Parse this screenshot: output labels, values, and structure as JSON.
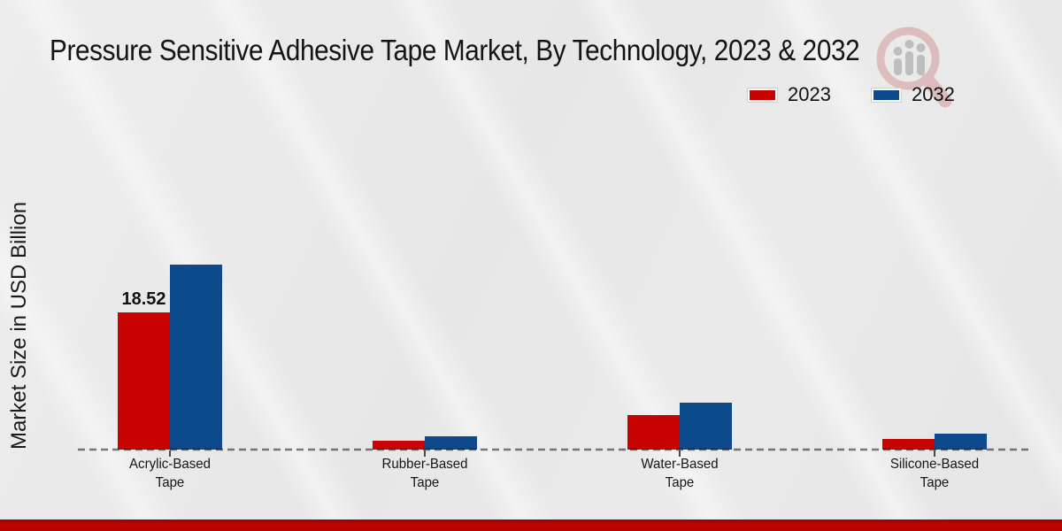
{
  "page": {
    "title": "Pressure Sensitive Adhesive Tape Market, By Technology, 2023 & 2032",
    "y_axis_label": "Market Size in USD Billion"
  },
  "legend": {
    "items": [
      {
        "label": "2023",
        "color": "#c90202"
      },
      {
        "label": "2032",
        "color": "#0d4a8c"
      }
    ]
  },
  "chart_data": {
    "type": "bar",
    "title": "Pressure Sensitive Adhesive Tape Market, By Technology, 2023 & 2032",
    "xlabel": "",
    "ylabel": "Market Size in USD Billion",
    "categories": [
      "Acrylic-Based\nTape",
      "Rubber-Based\nTape",
      "Water-Based\nTape",
      "Silicone-Based\nTape"
    ],
    "series": [
      {
        "name": "2023",
        "color": "#c90202",
        "values": [
          18.52,
          1.2,
          4.7,
          1.4
        ]
      },
      {
        "name": "2032",
        "color": "#0d4a8c",
        "values": [
          25.0,
          1.8,
          6.3,
          2.2
        ]
      }
    ],
    "data_labels": [
      {
        "series": "2023",
        "category_index": 0,
        "text": "18.52"
      }
    ],
    "ylim": [
      0,
      27
    ],
    "grid": false,
    "y_axis_ticks_visible": false,
    "legend_position": "top-right",
    "baseline_style": "dashed"
  },
  "colors": {
    "series_2023": "#c90202",
    "series_2032": "#0d4a8c",
    "bottom_strip": "#c00000",
    "background": "#e9e9e9",
    "baseline": "#3c3c3c"
  }
}
